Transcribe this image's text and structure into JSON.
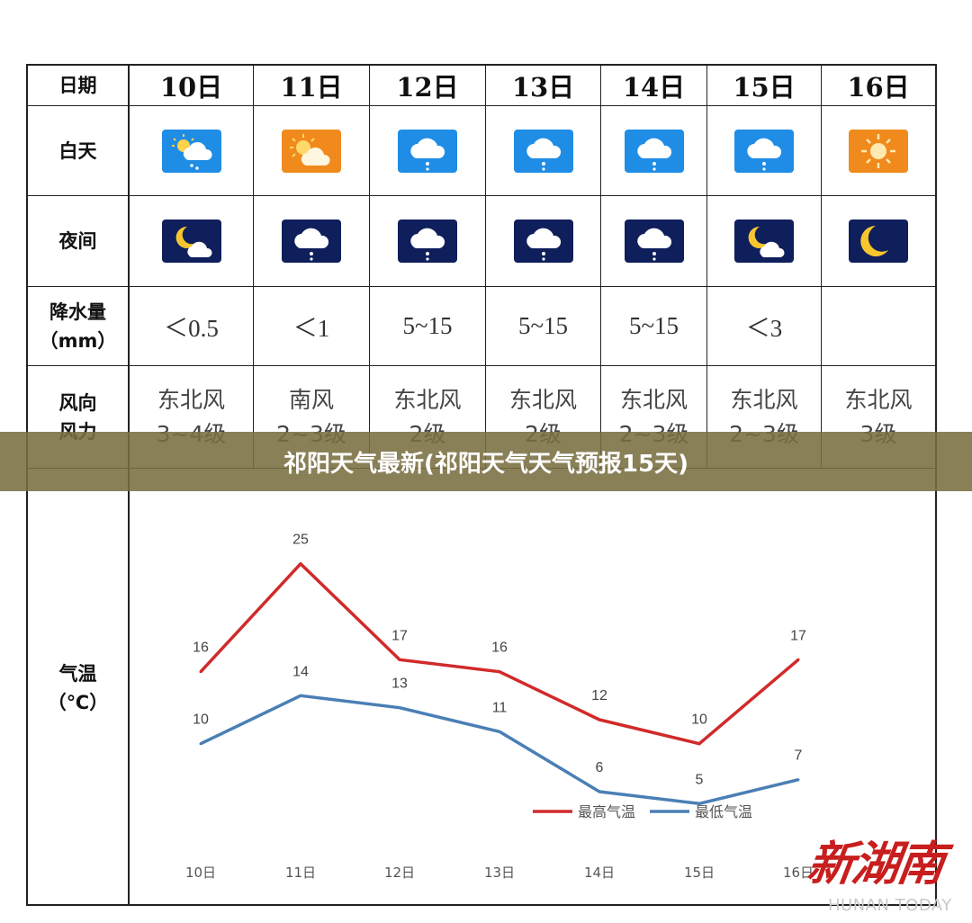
{
  "banner": {
    "title": "祁阳天气最新(祁阳天气天气预报15天)"
  },
  "table": {
    "row_labels": {
      "date": "日期",
      "day": "白天",
      "night": "夜间",
      "precip_line1": "降水量",
      "precip_line2": "（mm）",
      "wind_line1": "风向",
      "wind_line2": "风力",
      "temp_line1": "气温",
      "temp_line2": "（℃）"
    },
    "columns": [
      {
        "date": "10日",
        "day_icon": "partly-cloudy-rain-icon",
        "night_icon": "moon-cloud-icon",
        "precip": "＜0.5",
        "wind_dir": "东北风",
        "wind_force": "3~4级"
      },
      {
        "date": "11日",
        "day_icon": "sun-cloud-icon",
        "night_icon": "cloud-rain-icon",
        "precip": "＜1",
        "wind_dir": "南风",
        "wind_force": "2~3级"
      },
      {
        "date": "12日",
        "day_icon": "cloud-rain-icon",
        "night_icon": "cloud-rain-icon",
        "precip": "5~15",
        "wind_dir": "东北风",
        "wind_force": "2级"
      },
      {
        "date": "13日",
        "day_icon": "cloud-rain-icon",
        "night_icon": "cloud-rain-icon",
        "precip": "5~15",
        "wind_dir": "东北风",
        "wind_force": "2级"
      },
      {
        "date": "14日",
        "day_icon": "cloud-rain-icon",
        "night_icon": "cloud-rain-icon",
        "precip": "5~15",
        "wind_dir": "东北风",
        "wind_force": "2~3级"
      },
      {
        "date": "15日",
        "day_icon": "cloud-rain-icon",
        "night_icon": "moon-cloud-icon",
        "precip": "＜3",
        "wind_dir": "东北风",
        "wind_force": "2~3级"
      },
      {
        "date": "16日",
        "day_icon": "sun-icon",
        "night_icon": "moon-icon",
        "precip": "",
        "wind_dir": "东北风",
        "wind_force": "3级"
      }
    ]
  },
  "colors": {
    "high": "#d12a2a",
    "low": "#4a7fb5",
    "day_blue": "#1f8de6",
    "day_orange": "#f08a1c",
    "night": "#0f1f5c"
  },
  "chart_data": {
    "type": "line",
    "categories": [
      "10日",
      "11日",
      "12日",
      "13日",
      "14日",
      "15日",
      "16日"
    ],
    "series": [
      {
        "name": "最高气温",
        "values": [
          16,
          25,
          17,
          16,
          12,
          10,
          17
        ]
      },
      {
        "name": "最低气温",
        "values": [
          10,
          14,
          13,
          11,
          6,
          5,
          7
        ]
      }
    ],
    "ylim": [
      0,
      30
    ],
    "grid": false,
    "legend": "bottom-right",
    "data_labels": true
  },
  "watermark": {
    "cn": "新湖南",
    "en": "HUNAN TODAY"
  }
}
